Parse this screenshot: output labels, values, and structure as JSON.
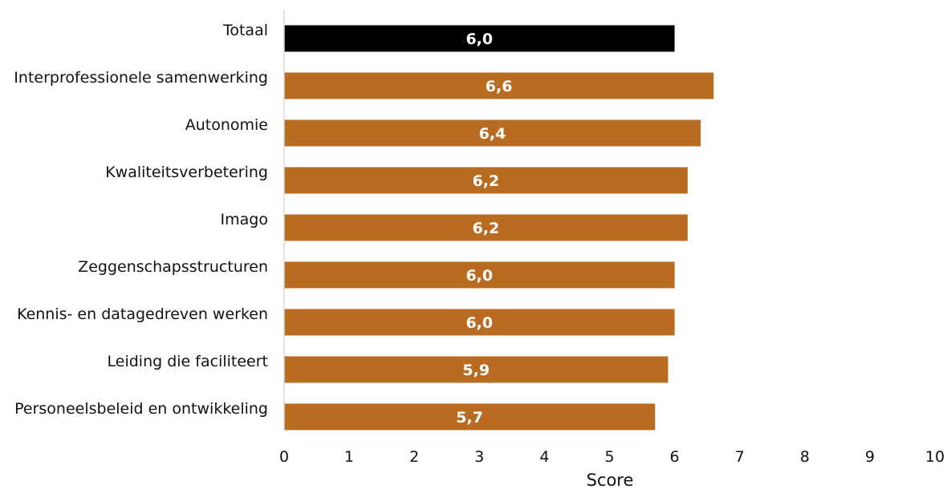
{
  "chart_data": {
    "type": "bar",
    "orientation": "horizontal",
    "categories": [
      "Totaal",
      "Interprofessionele samenwerking",
      "Autonomie",
      "Kwaliteitsverbetering",
      "Imago",
      "Zeggenschapsstructuren",
      "Kennis- en datagedreven werken",
      "Leiding die faciliteert",
      "Personeelsbeleid en ontwikkeling"
    ],
    "values": [
      6.0,
      6.6,
      6.4,
      6.2,
      6.2,
      6.0,
      6.0,
      5.9,
      5.7
    ],
    "value_labels": [
      "6,0",
      "6,6",
      "6,4",
      "6,2",
      "6,2",
      "6,0",
      "6,0",
      "5,9",
      "5,7"
    ],
    "title": "",
    "xlabel": "Score",
    "ylabel": "",
    "xlim": [
      0,
      10
    ],
    "xticks": [
      0,
      1,
      2,
      3,
      4,
      5,
      6,
      7,
      8,
      9,
      10
    ],
    "grid": false,
    "legend": "none",
    "colors": {
      "highlight": "#000000",
      "bar": "#b96b21",
      "axis": "#d9d9d9",
      "value_text": "#ffffff"
    }
  }
}
